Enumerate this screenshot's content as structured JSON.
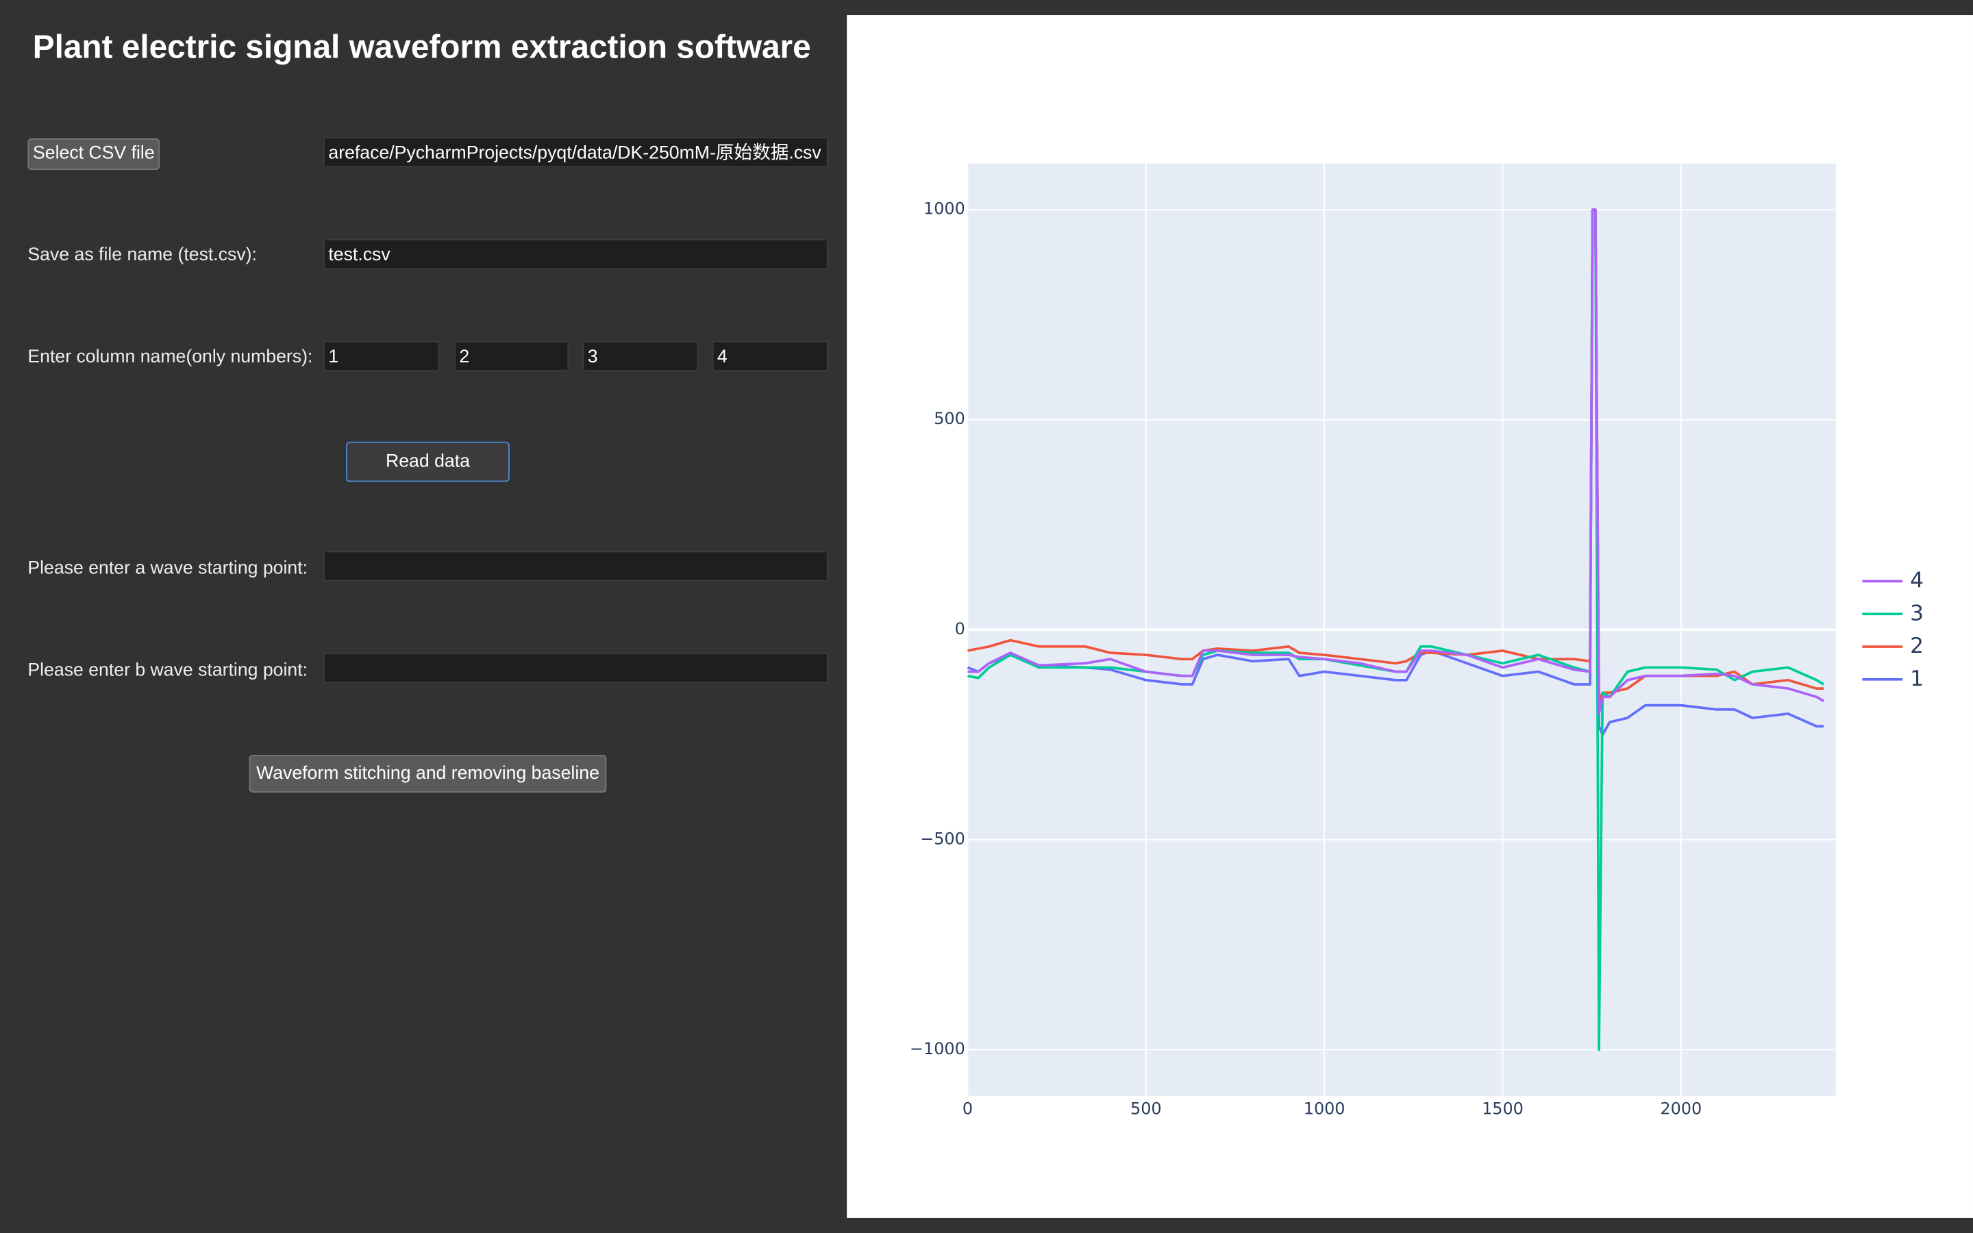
{
  "app": {
    "title": "Plant electric signal waveform extraction software",
    "select_button": "Select CSV file",
    "file_path": "areface/PycharmProjects/pyqt/data/DK-250mM-原始数据.csv",
    "save_label": "Save as file name (test.csv):",
    "save_value": "test.csv",
    "column_label": "Enter column name(only numbers):",
    "columns": [
      "1",
      "2",
      "3",
      "4"
    ],
    "read_button": "Read data",
    "a_label": "Please enter a wave starting point:",
    "b_label": "Please enter b wave starting point:",
    "stitch_button": "Waveform stitching and removing baseline"
  },
  "chart_data": {
    "type": "line",
    "x": [
      0,
      30,
      60,
      120,
      200,
      330,
      400,
      500,
      600,
      630,
      660,
      700,
      800,
      900,
      930,
      1000,
      1100,
      1200,
      1230,
      1270,
      1300,
      1400,
      1500,
      1600,
      1700,
      1745,
      1752,
      1760,
      1770,
      1780,
      1800,
      1850,
      1900,
      2000,
      2100,
      2150,
      2200,
      2300,
      2380,
      2400
    ],
    "series": [
      {
        "name": "1",
        "color": "#636efa",
        "values": [
          -90,
          -100,
          -80,
          -60,
          -85,
          -90,
          -95,
          -120,
          -130,
          -130,
          -70,
          -60,
          -75,
          -70,
          -110,
          -100,
          -110,
          -120,
          -120,
          -60,
          -50,
          -80,
          -110,
          -100,
          -130,
          -130,
          1000,
          1000,
          -230,
          -250,
          -220,
          -210,
          -180,
          -180,
          -190,
          -190,
          -210,
          -200,
          -230,
          -230
        ]
      },
      {
        "name": "2",
        "color": "#ef553b",
        "values": [
          -50,
          -45,
          -40,
          -25,
          -40,
          -40,
          -55,
          -60,
          -70,
          -70,
          -50,
          -45,
          -50,
          -40,
          -55,
          -60,
          -70,
          -80,
          -75,
          -55,
          -55,
          -60,
          -50,
          -70,
          -70,
          -75,
          1000,
          1000,
          -170,
          -150,
          -150,
          -140,
          -110,
          -110,
          -110,
          -100,
          -130,
          -120,
          -140,
          -140
        ]
      },
      {
        "name": "3",
        "color": "#00cc96",
        "values": [
          -110,
          -115,
          -90,
          -60,
          -90,
          -90,
          -90,
          -100,
          -110,
          -110,
          -60,
          -50,
          -55,
          -55,
          -70,
          -70,
          -85,
          -100,
          -100,
          -40,
          -40,
          -60,
          -80,
          -60,
          -90,
          -100,
          1000,
          1000,
          -1000,
          -150,
          -160,
          -100,
          -90,
          -90,
          -95,
          -120,
          -100,
          -90,
          -120,
          -130
        ]
      },
      {
        "name": "4",
        "color": "#ab63fa",
        "values": [
          -100,
          -100,
          -80,
          -55,
          -85,
          -80,
          -70,
          -100,
          -110,
          -110,
          -50,
          -50,
          -60,
          -60,
          -65,
          -70,
          -80,
          -100,
          -100,
          -50,
          -50,
          -60,
          -90,
          -70,
          -95,
          -100,
          1000,
          1000,
          -200,
          -160,
          -160,
          -120,
          -110,
          -110,
          -105,
          -110,
          -130,
          -140,
          -160,
          -170
        ]
      }
    ],
    "xlim": [
      0,
      2434
    ],
    "ylim": [
      -1110,
      1110
    ],
    "xticks": [
      0,
      500,
      1000,
      1500,
      2000
    ],
    "yticks": [
      {
        "value": -1000,
        "label": "−1000"
      },
      {
        "value": -500,
        "label": "−500"
      },
      0,
      500,
      1000
    ],
    "grid": true
  }
}
